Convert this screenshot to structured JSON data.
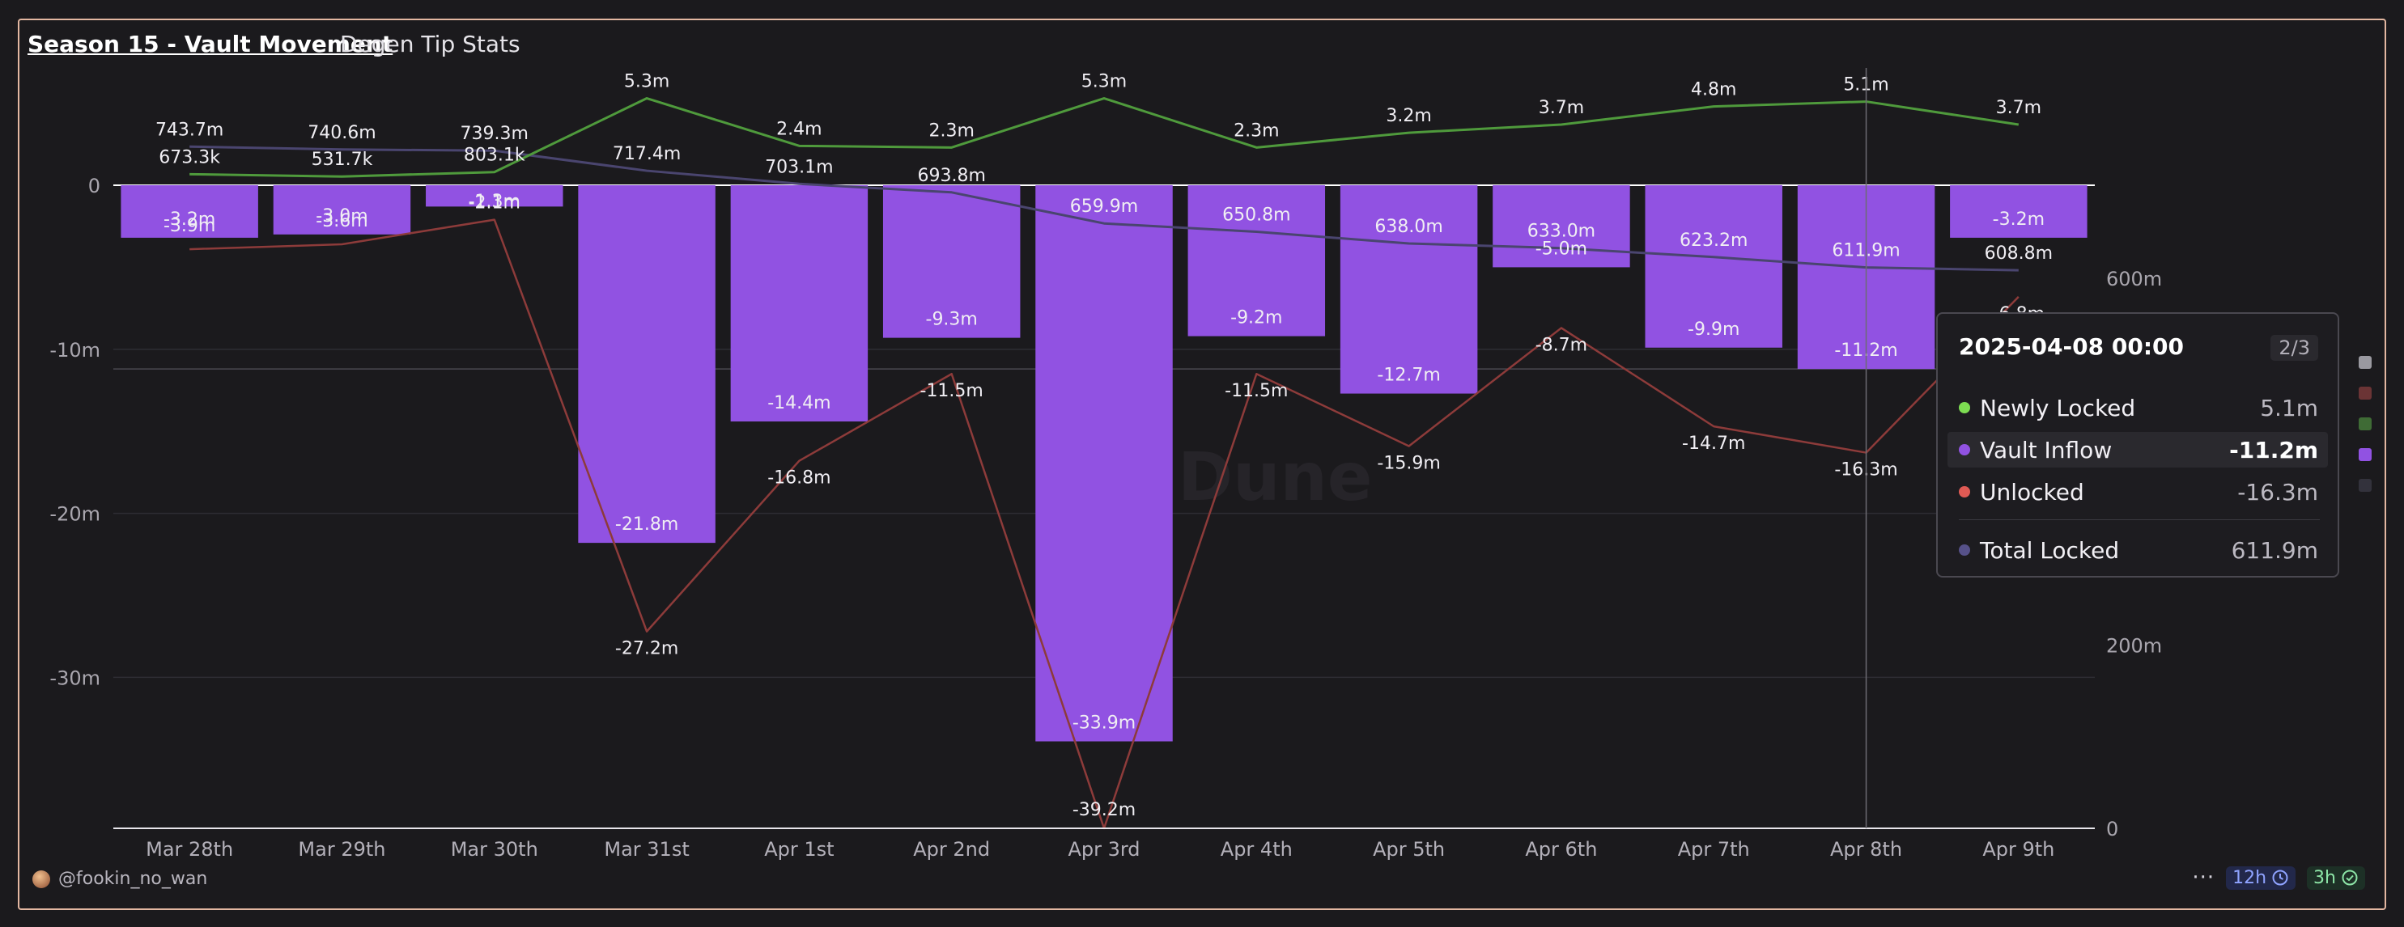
{
  "header": {
    "title": "Season 15 - Vault Movement",
    "subtitle": "Degen Tip Stats"
  },
  "colors": {
    "vault_inflow": "#9152e2",
    "newly_locked": "#4f9a3c",
    "unlocked": "#8d3b3a",
    "total_locked": "#4a456f",
    "background": "#1b1a1d"
  },
  "chart_data": {
    "type": "bar",
    "categories": [
      "Mar 28th",
      "Mar 29th",
      "Mar 30th",
      "Mar 31st",
      "Apr 1st",
      "Apr 2nd",
      "Apr 3rd",
      "Apr 4th",
      "Apr 5th",
      "Apr 6th",
      "Apr 7th",
      "Apr 8th",
      "Apr 9th"
    ],
    "y_left": {
      "ticks": [
        0,
        -10000000,
        -20000000,
        -30000000
      ],
      "tick_labels": [
        "0",
        "-10m",
        "-20m",
        "-30m"
      ],
      "range": [
        -39200000,
        5500000
      ]
    },
    "y_right": {
      "ticks": [
        0,
        200000000,
        600000000
      ],
      "tick_labels": [
        "0",
        "200m",
        "600m"
      ],
      "range": [
        0,
        800000000
      ]
    },
    "series": [
      {
        "name": "Vault Inflow",
        "type": "bar",
        "axis": "left",
        "values": [
          -3200000,
          -3000000,
          -1300000,
          -21800000,
          -14400000,
          -9300000,
          -33900000,
          -9200000,
          -12700000,
          -5000000,
          -9900000,
          -11200000,
          -3200000
        ],
        "labels": [
          "-3.2m",
          "-3.0m",
          "-1.3m",
          "-21.8m",
          "-14.4m",
          "-9.3m",
          "-33.9m",
          "-9.2m",
          "-12.7m",
          "-5.0m",
          "-9.9m",
          "-11.2m",
          "-3.2m"
        ]
      },
      {
        "name": "Newly Locked",
        "type": "line",
        "axis": "left",
        "values": [
          673300,
          531700,
          803100,
          5300000,
          2400000,
          2300000,
          5300000,
          2300000,
          3200000,
          3700000,
          4800000,
          5100000,
          3700000
        ],
        "labels": [
          "673.3k",
          "531.7k",
          "803.1k",
          "5.3m",
          "2.4m",
          "2.3m",
          "5.3m",
          "2.3m",
          "3.2m",
          "3.7m",
          "4.8m",
          "5.1m",
          "3.7m"
        ]
      },
      {
        "name": "Unlocked",
        "type": "line",
        "axis": "left",
        "values": [
          -3900000,
          -3600000,
          -2100000,
          -27200000,
          -16800000,
          -11500000,
          -39200000,
          -11500000,
          -15900000,
          -8700000,
          -14700000,
          -16300000,
          -6800000
        ],
        "labels": [
          "-3.9m",
          "-3.6m",
          "-2.1m",
          "-27.2m",
          "-16.8m",
          "-11.5m",
          "-39.2m",
          "-11.5m",
          "-15.9m",
          "-8.7m",
          "-14.7m",
          "-16.3m",
          "-6.8m"
        ]
      },
      {
        "name": "Total Locked",
        "type": "line",
        "axis": "right",
        "values": [
          743700000,
          740600000,
          739300000,
          717400000,
          703100000,
          693800000,
          659900000,
          650800000,
          638000000,
          633000000,
          623200000,
          611900000,
          608800000
        ],
        "labels": [
          "743.7m",
          "740.6m",
          "739.3m",
          "717.4m",
          "703.1m",
          "693.8m",
          "659.9m",
          "650.8m",
          "638.0m",
          "633.0m",
          "623.2m",
          "611.9m",
          "608.8m"
        ]
      }
    ],
    "hover_index": 11,
    "watermark": "Dune"
  },
  "tooltip": {
    "date": "2025-04-08 00:00",
    "page": "2/3",
    "rows": [
      {
        "label": "Newly Locked",
        "value": "5.1m",
        "color": "#7ddc52"
      },
      {
        "label": "Vault Inflow",
        "value": "-11.2m",
        "color": "#9152e2"
      },
      {
        "label": "Unlocked",
        "value": "-16.3m",
        "color": "#e05a54"
      },
      {
        "label": "Total Locked",
        "value": "611.9m",
        "color": "#565189"
      }
    ]
  },
  "footer": {
    "user": "@fookin_no_wan",
    "refresh": "12h",
    "age": "3h",
    "more": "···"
  }
}
